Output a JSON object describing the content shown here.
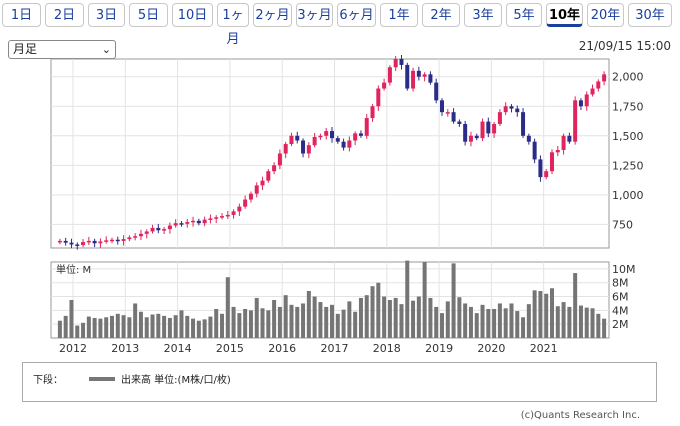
{
  "tabs": [
    {
      "label": "1日"
    },
    {
      "label": "2日"
    },
    {
      "label": "3日"
    },
    {
      "label": "5日"
    },
    {
      "label": "10日"
    },
    {
      "label": "1ヶ月"
    },
    {
      "label": "2ヶ月"
    },
    {
      "label": "3ヶ月"
    },
    {
      "label": "6ヶ月"
    },
    {
      "label": "1年"
    },
    {
      "label": "2年"
    },
    {
      "label": "3年"
    },
    {
      "label": "5年"
    },
    {
      "label": "10年",
      "active": true
    },
    {
      "label": "20年"
    },
    {
      "label": "30年"
    }
  ],
  "period_select": {
    "value": "月足"
  },
  "timestamp": "21/09/15 15:00",
  "legend": {
    "prefix": "下段：",
    "series_text": "出来高 単位:(M株/口/枚)"
  },
  "copyright": "(c)Quants Research Inc.",
  "volume_unit": "単位: M",
  "colors": {
    "up": "#e0245e",
    "down": "#2b2b8a",
    "volume": "#757575",
    "tab_text": "#1a3f9c"
  },
  "chart_data": [
    {
      "type": "candlestick",
      "xlabels": [
        "2012",
        "2013",
        "2014",
        "2015",
        "2016",
        "2017",
        "2018",
        "2019",
        "2020",
        "2021"
      ],
      "ylim": [
        550,
        2150
      ],
      "yticks": [
        750,
        1000,
        1250,
        1500,
        1750,
        2000
      ],
      "ytick_labels": [
        "750",
        "1,000",
        "1,250",
        "1,500",
        "1,750",
        "2,000"
      ],
      "grid": true,
      "prices": [
        610,
        595,
        580,
        575,
        600,
        610,
        590,
        605,
        615,
        620,
        610,
        625,
        640,
        650,
        670,
        690,
        720,
        700,
        710,
        740,
        760,
        755,
        770,
        780,
        760,
        790,
        800,
        810,
        820,
        830,
        860,
        900,
        960,
        1010,
        1080,
        1120,
        1200,
        1250,
        1350,
        1430,
        1500,
        1460,
        1350,
        1420,
        1490,
        1500,
        1540,
        1480,
        1450,
        1400,
        1460,
        1520,
        1500,
        1650,
        1750,
        1900,
        1950,
        2080,
        2150,
        2100,
        1900,
        2050,
        2000,
        2020,
        1950,
        1800,
        1700,
        1700,
        1620,
        1600,
        1450,
        1500,
        1480,
        1620,
        1520,
        1600,
        1700,
        1750,
        1730,
        1700,
        1500,
        1450,
        1300,
        1150,
        1200,
        1360,
        1380,
        1500,
        1450,
        1800,
        1750,
        1850,
        1900,
        1960,
        2020
      ],
      "volume_ylim": [
        0,
        11
      ],
      "volume_ticks": [
        2,
        4,
        6,
        8,
        10
      ],
      "volume_tick_labels": [
        "2M",
        "4M",
        "6M",
        "8M",
        "10M"
      ],
      "volume": [
        2.5,
        3.2,
        5.5,
        1.8,
        2.2,
        3.1,
        2.9,
        2.8,
        3.0,
        3.2,
        3.5,
        3.3,
        3.0,
        5.0,
        3.8,
        3.0,
        3.4,
        3.5,
        3.2,
        2.9,
        3.3,
        4.0,
        3.2,
        2.8,
        2.5,
        2.7,
        3.1,
        4.2,
        3.5,
        8.8,
        4.5,
        3.6,
        4.2,
        4.0,
        5.8,
        4.3,
        4.0,
        5.5,
        4.5,
        6.2,
        4.8,
        4.5,
        5.0,
        6.8,
        6.0,
        5.2,
        4.5,
        4.8,
        3.5,
        4.1,
        5.3,
        3.8,
        5.8,
        6.2,
        7.5,
        8.0,
        6.0,
        5.5,
        5.8,
        4.9,
        11.2,
        5.4,
        6.0,
        11.0,
        5.8,
        4.5,
        3.6,
        5.3,
        10.8,
        5.9,
        5.0,
        4.5,
        3.6,
        4.8,
        4.2,
        4.2,
        5.0,
        4.3,
        5.0,
        3.9,
        3.0,
        4.9,
        6.9,
        6.8,
        6.4,
        7.2,
        4.6,
        5.2,
        4.5,
        9.4,
        4.7,
        4.4,
        4.3,
        3.5,
        2.8
      ]
    }
  ]
}
